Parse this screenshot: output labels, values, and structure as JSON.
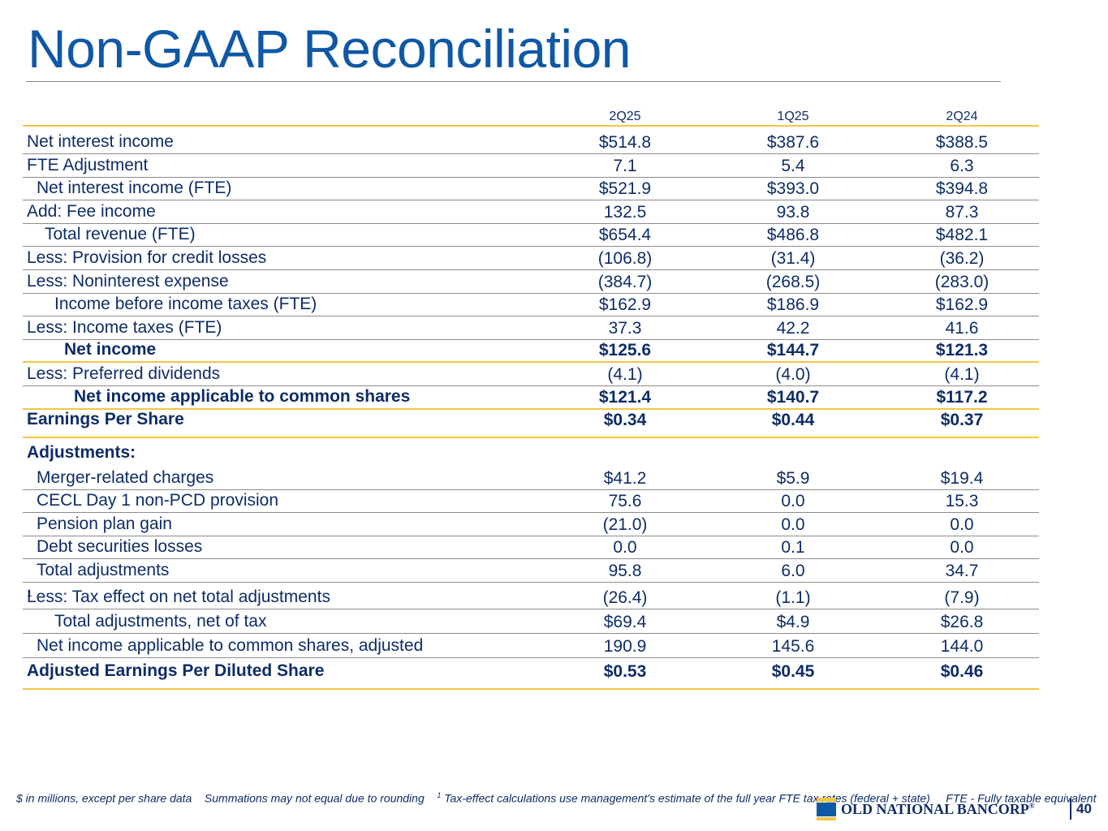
{
  "header": {
    "title": "Non-GAAP Reconciliation"
  },
  "table": {
    "columns": [
      "2Q25",
      "1Q25",
      "2Q24"
    ],
    "rows": [
      {
        "label": "Net interest income",
        "values": [
          "$514.8",
          "$387.6",
          "$388.5"
        ]
      },
      {
        "label": "FTE Adjustment",
        "values": [
          "7.1",
          "5.4",
          "6.3"
        ]
      },
      {
        "label": "Net interest income (FTE)",
        "values": [
          "$521.9",
          "$393.0",
          "$394.8"
        ]
      },
      {
        "label": "Add: Fee income",
        "values": [
          "132.5",
          "93.8",
          "87.3"
        ]
      },
      {
        "label": "Total revenue (FTE)",
        "values": [
          "$654.4",
          "$486.8",
          "$482.1"
        ]
      },
      {
        "label": "Less: Provision for credit losses",
        "values": [
          "(106.8)",
          "(31.4)",
          "(36.2)"
        ]
      },
      {
        "label": "Less: Noninterest expense",
        "values": [
          "(384.7)",
          "(268.5)",
          "(283.0)"
        ]
      },
      {
        "label": "Income before income taxes (FTE)",
        "values": [
          "$162.9",
          "$186.9",
          "$162.9"
        ]
      },
      {
        "label": "Less: Income taxes (FTE)",
        "values": [
          "37.3",
          "42.2",
          "41.6"
        ]
      },
      {
        "label": "Net income",
        "values": [
          "$125.6",
          "$144.7",
          "$121.3"
        ]
      },
      {
        "label": "Less: Preferred dividends",
        "values": [
          "(4.1)",
          "(4.0)",
          "(4.1)"
        ]
      },
      {
        "label": "Net income applicable to common shares",
        "values": [
          "$121.4",
          "$140.7",
          "$117.2"
        ]
      },
      {
        "label": "Earnings Per Share",
        "values": [
          "$0.34",
          "$0.44",
          "$0.37"
        ]
      },
      {
        "label": "Adjustments:"
      },
      {
        "label": "Merger-related charges",
        "values": [
          "$41.2",
          "$5.9",
          "$19.4"
        ]
      },
      {
        "label": "CECL Day 1 non-PCD provision",
        "values": [
          "75.6",
          "0.0",
          "15.3"
        ]
      },
      {
        "label": "Pension plan gain",
        "values": [
          "(21.0)",
          "0.0",
          "0.0"
        ]
      },
      {
        "label": "Debt securities losses",
        "values": [
          "0.0",
          "0.1",
          "0.0"
        ]
      },
      {
        "label": "Total adjustments",
        "values": [
          "95.8",
          "6.0",
          "34.7"
        ]
      },
      {
        "label": "Less: Tax effect on net total adjustments",
        "sup": "1",
        "values": [
          "(26.4)",
          "(1.1)",
          "(7.9)"
        ]
      },
      {
        "label": "Total adjustments, net of tax",
        "values": [
          "$69.4",
          "$4.9",
          "$26.8"
        ]
      },
      {
        "label": "Net income applicable to common shares, adjusted",
        "values": [
          "190.9",
          "145.6",
          "144.0"
        ]
      },
      {
        "label": "Adjusted Earnings Per Diluted Share",
        "values": [
          "$0.53",
          "$0.45",
          "$0.46"
        ]
      }
    ]
  },
  "footer": {
    "notes": [
      "$ in millions, except per share data",
      "Summations may not equal due to rounding"
    ],
    "footnote_mark": "1",
    "footnote": "Tax-effect calculations use management's estimate of the full year FTE tax rates (federal + state)",
    "abbreviation": "FTE - Fully taxable equivalent",
    "logo": "OLD NATIONAL BANCORP",
    "logo_mark": "®",
    "page": "40"
  }
}
